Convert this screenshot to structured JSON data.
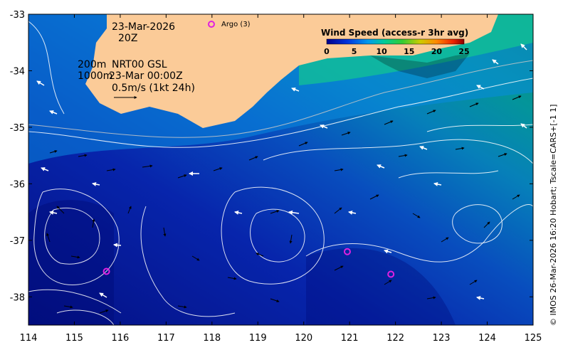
{
  "map": {
    "date": "23-Mar-2026",
    "time": "20Z",
    "depth_line_1": "200m",
    "depth_line_2": "1000m",
    "product": "NRT00 GSL",
    "product_time": "23-Mar 00:00Z",
    "scale_label": "0.5m/s (1kt 24h)",
    "argo_label": "Argo (3)",
    "credit": "© IMOS 26-Mar-2026 16:20 Hobart; Tscale=CARS+[-1 1]",
    "lon_range": [
      114,
      125
    ],
    "lat_range": [
      -38.5,
      -33
    ],
    "lon_ticks": [
      "114",
      "115",
      "116",
      "117",
      "118",
      "119",
      "120",
      "121",
      "122",
      "123",
      "124",
      "125"
    ],
    "lat_ticks": [
      "-33",
      "-34",
      "-35",
      "-36",
      "-37",
      "-38"
    ],
    "argo_floats": [
      {
        "lon": 115.7,
        "lat": -37.55
      },
      {
        "lon": 120.95,
        "lat": -37.2
      },
      {
        "lon": 121.9,
        "lat": -37.6
      }
    ],
    "colors": {
      "land": "#fbcb98",
      "argo": "#e020e0"
    }
  },
  "colorbar": {
    "title": "Wind Speed (access-r 3hr avg)",
    "ticks": [
      "0",
      "5",
      "10",
      "15",
      "20",
      "25"
    ],
    "range": [
      0,
      25
    ]
  }
}
